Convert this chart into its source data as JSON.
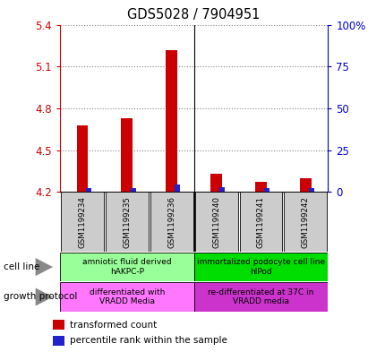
{
  "title": "GDS5028 / 7904951",
  "samples": [
    "GSM1199234",
    "GSM1199235",
    "GSM1199236",
    "GSM1199240",
    "GSM1199241",
    "GSM1199242"
  ],
  "red_values": [
    4.68,
    4.73,
    5.22,
    4.33,
    4.27,
    4.3
  ],
  "blue_pcts": [
    2.5,
    2.5,
    4.5,
    3.0,
    2.5,
    2.5
  ],
  "ylim_left": [
    4.2,
    5.4
  ],
  "ylim_right": [
    0,
    100
  ],
  "yticks_left": [
    4.2,
    4.5,
    4.8,
    5.1,
    5.4
  ],
  "yticks_right": [
    0,
    25,
    50,
    75,
    100
  ],
  "ytick_labels_left": [
    "4.2",
    "4.5",
    "4.8",
    "5.1",
    "5.4"
  ],
  "ytick_labels_right": [
    "0",
    "25",
    "50",
    "75",
    "100%"
  ],
  "red_color": "#cc0000",
  "blue_color": "#2222cc",
  "cell_line_groups": [
    {
      "label": "amniotic fluid derived\nhAKPC-P",
      "start": 0,
      "end": 3,
      "color": "#99ff99"
    },
    {
      "label": "immortalized podocyte cell line\nhIPod",
      "start": 3,
      "end": 6,
      "color": "#00dd00"
    }
  ],
  "growth_protocol_groups": [
    {
      "label": "differentiated with\nVRADD Media",
      "start": 0,
      "end": 3,
      "color": "#ff77ff"
    },
    {
      "label": "re-differentiated at 37C in\nVRADD media",
      "start": 3,
      "end": 6,
      "color": "#cc33cc"
    }
  ],
  "cell_line_label": "cell line",
  "growth_protocol_label": "growth protocol",
  "legend_red": "transformed count",
  "legend_blue": "percentile rank within the sample",
  "left_axis_color": "#cc0000",
  "right_axis_color": "#0000cc",
  "grid_color": "#888888",
  "label_gray": "#cccccc"
}
